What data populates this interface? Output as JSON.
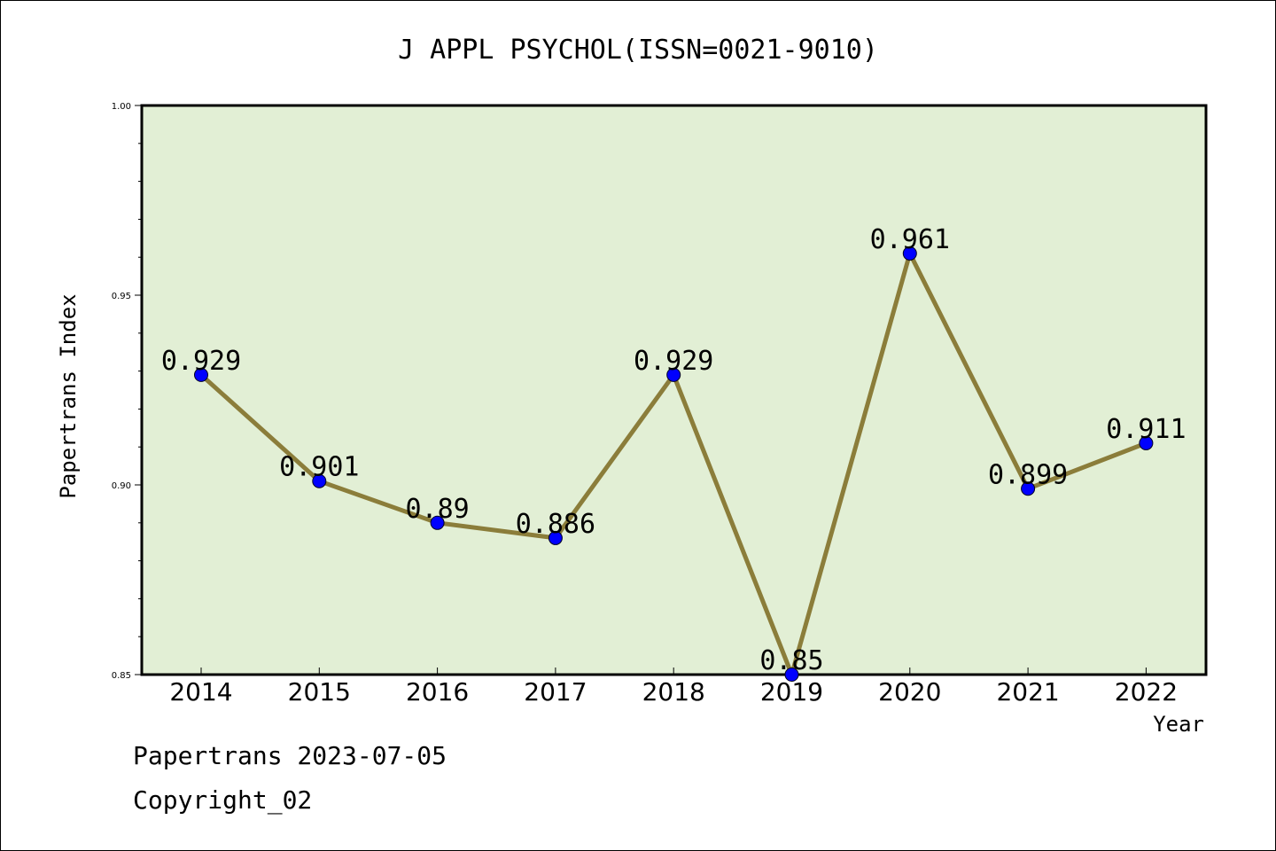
{
  "footer": {
    "line1": "Papertrans 2023-07-05",
    "line2": "Copyright_02"
  },
  "colors": {
    "plot_bg": "#e2efd5",
    "line": "#8b7d3a",
    "marker": "#0000ff"
  },
  "chart_data": {
    "type": "line",
    "title": "J APPL PSYCHOL(ISSN=0021-9010)",
    "xlabel": "Year",
    "ylabel": "Papertrans Index",
    "categories": [
      "2014",
      "2015",
      "2016",
      "2017",
      "2018",
      "2019",
      "2020",
      "2021",
      "2022"
    ],
    "values": [
      0.929,
      0.901,
      0.89,
      0.886,
      0.929,
      0.85,
      0.961,
      0.899,
      0.911
    ],
    "data_labels": [
      "0.929",
      "0.901",
      "0.89",
      "0.886",
      "0.929",
      "0.85",
      "0.961",
      "0.899",
      "0.911"
    ],
    "ylim": [
      0.85,
      1.0
    ],
    "yticks": [
      0.85,
      0.9,
      0.95,
      1.0
    ],
    "ytick_labels": [
      "0.85",
      "0.90",
      "0.95",
      "1.00"
    ],
    "grid": false,
    "legend": "none"
  }
}
